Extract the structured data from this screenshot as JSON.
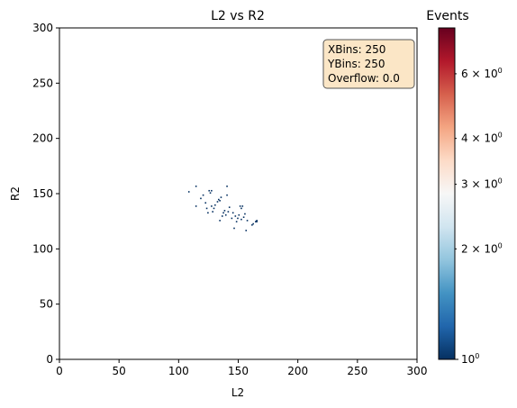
{
  "chart_data": {
    "type": "heatmap",
    "title": "L2 vs R2",
    "xlabel": "L2",
    "ylabel": "R2",
    "xlim": [
      0,
      300
    ],
    "ylim": [
      0,
      300
    ],
    "x_ticks": [
      "0",
      "50",
      "100",
      "150",
      "200",
      "250",
      "300"
    ],
    "y_ticks": [
      "0",
      "50",
      "100",
      "150",
      "200",
      "250",
      "300"
    ],
    "bins": 250,
    "grid": false,
    "colormap": "RdBu_r",
    "colorbar": {
      "label": "Events",
      "scale": "log",
      "range": [
        1,
        8
      ],
      "major_ticks": [
        {
          "value": 1,
          "label": "10",
          "exp": "0"
        }
      ],
      "minor_ticks": [
        {
          "value": 2,
          "label": "2 × 10",
          "exp": "0"
        },
        {
          "value": 3,
          "label": "3 × 10",
          "exp": "0"
        },
        {
          "value": 4,
          "label": "4 × 10",
          "exp": "0"
        },
        {
          "value": 6,
          "label": "6 × 10",
          "exp": "0"
        }
      ]
    },
    "stats_box": {
      "lines": [
        "XBins: 250",
        "YBins: 250",
        "Overflow: 0.0"
      ],
      "location": "upper-right",
      "facecolor": "#fbe6c6"
    },
    "points": [
      [
        108,
        151,
        1
      ],
      [
        114,
        156,
        1
      ],
      [
        114,
        138,
        1
      ],
      [
        118,
        145,
        1
      ],
      [
        120,
        148,
        1
      ],
      [
        122,
        141,
        1
      ],
      [
        123,
        136,
        1
      ],
      [
        124,
        132,
        1
      ],
      [
        125,
        152,
        1
      ],
      [
        126,
        150,
        1
      ],
      [
        127,
        152,
        1
      ],
      [
        127,
        138,
        1
      ],
      [
        128,
        133,
        1
      ],
      [
        129,
        136,
        1
      ],
      [
        130,
        139,
        1
      ],
      [
        132,
        142,
        1
      ],
      [
        133,
        144,
        1
      ],
      [
        134,
        143,
        1
      ],
      [
        135,
        146,
        1
      ],
      [
        134,
        125,
        1
      ],
      [
        136,
        129,
        1
      ],
      [
        137,
        132,
        1
      ],
      [
        138,
        134,
        1
      ],
      [
        139,
        130,
        1
      ],
      [
        140,
        156,
        1
      ],
      [
        140,
        148,
        1
      ],
      [
        141,
        133,
        1
      ],
      [
        142,
        137,
        1
      ],
      [
        144,
        127,
        1
      ],
      [
        145,
        132,
        1
      ],
      [
        146,
        118,
        1
      ],
      [
        147,
        129,
        1
      ],
      [
        148,
        124,
        1
      ],
      [
        149,
        127,
        1
      ],
      [
        150,
        130,
        1
      ],
      [
        151,
        138,
        1
      ],
      [
        152,
        136,
        1
      ],
      [
        153,
        138,
        1
      ],
      [
        152,
        126,
        1
      ],
      [
        154,
        128,
        1
      ],
      [
        155,
        131,
        1
      ],
      [
        156,
        116,
        1
      ],
      [
        157,
        125,
        1
      ],
      [
        161,
        121,
        1
      ],
      [
        162,
        122,
        1
      ],
      [
        164,
        124,
        1
      ],
      [
        165,
        125,
        1
      ],
      [
        165,
        124,
        1
      ]
    ]
  }
}
